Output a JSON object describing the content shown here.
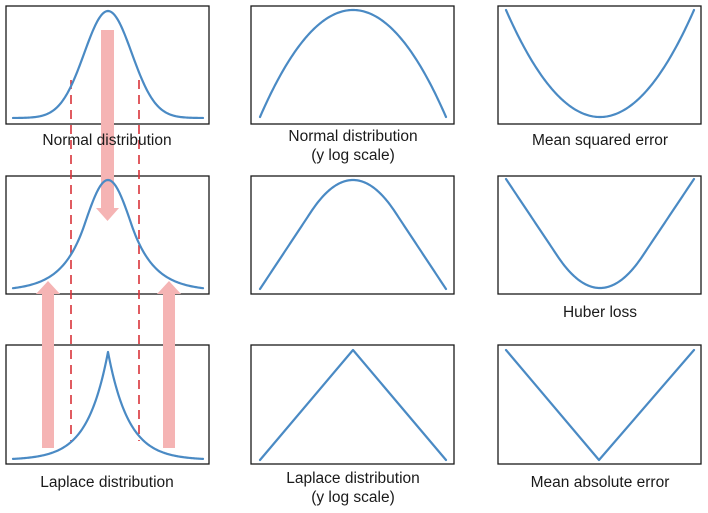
{
  "colors": {
    "curve": "#4a8ac4",
    "frame": "#1a1a1a",
    "arrow": "#f5b4b4",
    "dashed": "#d9333a"
  },
  "panels": [
    {
      "id": "normal",
      "shape": "gaussian",
      "caption": [
        "Normal distribution"
      ]
    },
    {
      "id": "normal-log",
      "shape": "parabola-down",
      "caption": [
        "Normal distribution",
        "(y log scale)"
      ]
    },
    {
      "id": "mse",
      "shape": "parabola-up",
      "caption": [
        "Mean squared error"
      ]
    },
    {
      "id": "mid",
      "shape": "gaussian-laplace-blend",
      "caption": []
    },
    {
      "id": "mid-log",
      "shape": "huber-down",
      "caption": []
    },
    {
      "id": "huber",
      "shape": "huber-up",
      "caption": [
        "Huber loss"
      ]
    },
    {
      "id": "laplace",
      "shape": "laplace",
      "caption": [
        "Laplace distribution"
      ]
    },
    {
      "id": "laplace-log",
      "shape": "v-down",
      "caption": [
        "Laplace distribution",
        "(y log scale)"
      ]
    },
    {
      "id": "mae",
      "shape": "v-up",
      "caption": [
        "Mean absolute error"
      ]
    }
  ]
}
